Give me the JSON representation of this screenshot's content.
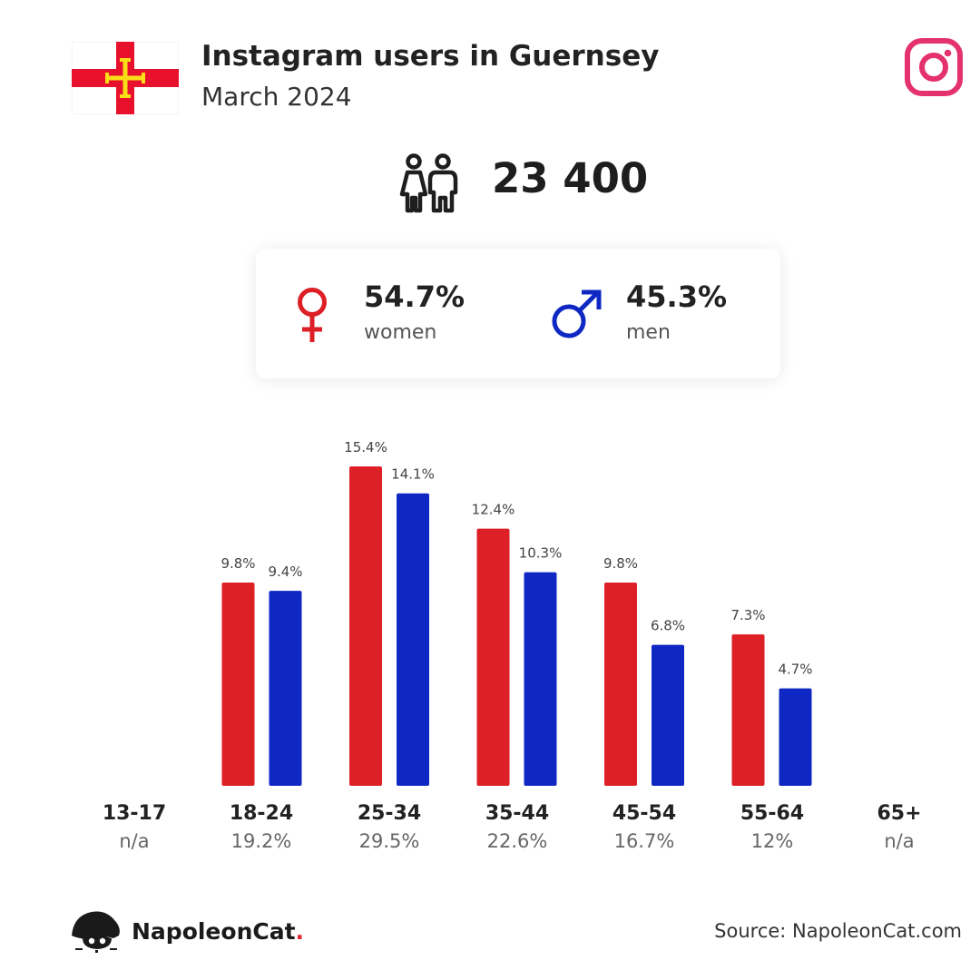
{
  "header": {
    "title": "Instagram users in Guernsey",
    "subtitle": "March 2024"
  },
  "total_users": "23 400",
  "gender": {
    "women_pct": "54.7%",
    "women_label": "women",
    "men_pct": "45.3%",
    "men_label": "men"
  },
  "colors": {
    "women": "#dd1f26",
    "men": "#0f28c3",
    "instagram": "#e4316f",
    "flag_red": "#e8112d",
    "flag_gold": "#f9dd16"
  },
  "icons": [
    "guernsey-flag",
    "instagram-icon",
    "users-icon",
    "female-icon",
    "male-icon",
    "napoleoncat-logo-icon"
  ],
  "chart_data": {
    "type": "bar",
    "categories": [
      "13-17",
      "18-24",
      "25-34",
      "35-44",
      "45-54",
      "55-64",
      "65+"
    ],
    "category_totals": [
      "n/a",
      "19.2%",
      "29.5%",
      "22.6%",
      "16.7%",
      "12%",
      "n/a"
    ],
    "series": [
      {
        "name": "women",
        "values": [
          null,
          9.8,
          15.4,
          12.4,
          9.8,
          7.3,
          null
        ],
        "labels": [
          "",
          "9.8%",
          "15.4%",
          "12.4%",
          "9.8%",
          "7.3%",
          ""
        ]
      },
      {
        "name": "men",
        "values": [
          null,
          9.4,
          14.1,
          10.3,
          6.8,
          4.7,
          null
        ],
        "labels": [
          "",
          "9.4%",
          "14.1%",
          "10.3%",
          "6.8%",
          "4.7%",
          ""
        ]
      }
    ],
    "title": "",
    "xlabel": "",
    "ylabel": "",
    "ylim": [
      0,
      15.4
    ],
    "grid": false,
    "legend": "none"
  },
  "footer": {
    "brand_name": "NapoleonCat",
    "brand_dot": ".",
    "source": "Source: NapoleonCat.com"
  }
}
